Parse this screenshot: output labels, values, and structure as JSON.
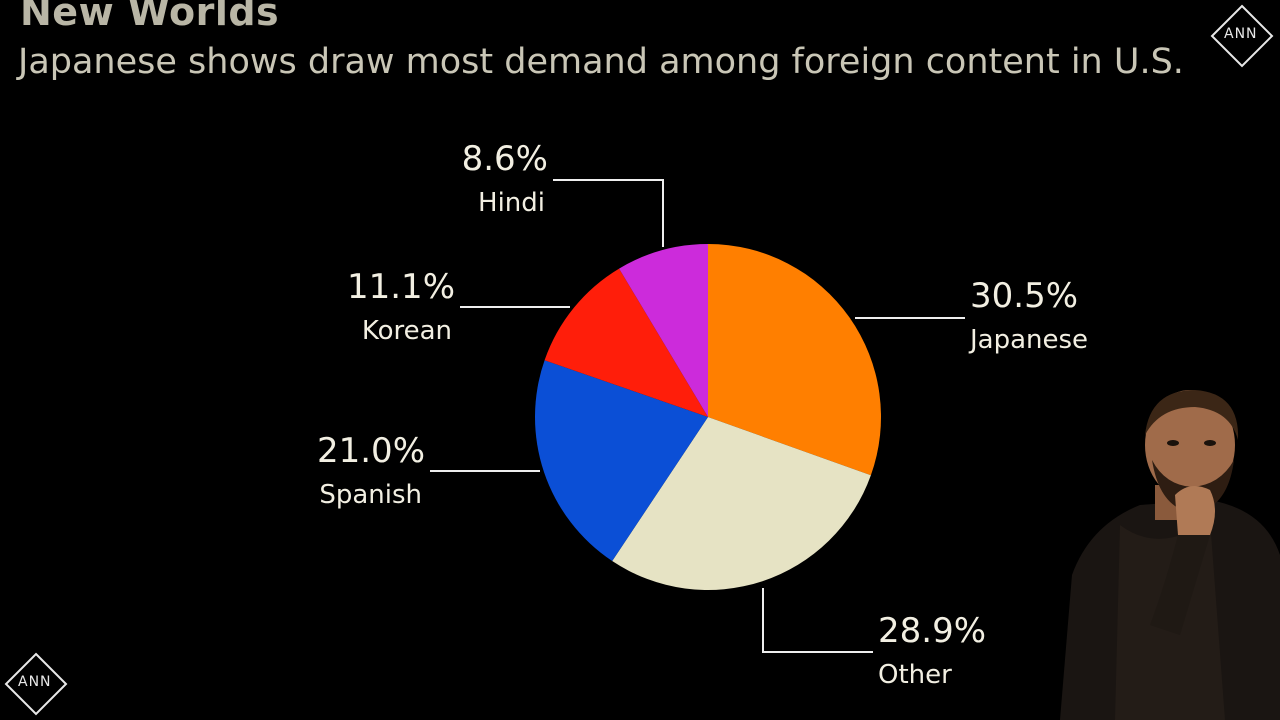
{
  "header": {
    "title": "New Worlds",
    "subtitle": "Japanese shows draw most demand among foreign content in U.S."
  },
  "watermark": {
    "text_top_right": "ANN",
    "text_bottom_left": "ANN"
  },
  "colors": {
    "background": "#000000",
    "japanese": "#ff7f00",
    "other": "#e6e3c4",
    "spanish": "#0b4fd6",
    "korean": "#ff1e0a",
    "hindi": "#cc2bdb"
  },
  "chart_data": {
    "type": "pie",
    "title": "New Worlds",
    "subtitle": "Japanese shows draw most demand among foreign content in U.S.",
    "slices": [
      {
        "label": "Japanese",
        "value": 30.5,
        "display": "30.5%",
        "color": "#ff7f00"
      },
      {
        "label": "Other",
        "value": 28.9,
        "display": "28.9%",
        "color": "#e6e3c4"
      },
      {
        "label": "Spanish",
        "value": 21.0,
        "display": "21.0%",
        "color": "#0b4fd6"
      },
      {
        "label": "Korean",
        "value": 11.1,
        "display": "11.1%",
        "color": "#ff1e0a"
      },
      {
        "label": "Hindi",
        "value": 8.6,
        "display": "8.6%",
        "color": "#cc2bdb"
      }
    ],
    "start": "12 o'clock",
    "direction": "clockwise",
    "legend": "none"
  },
  "presenter": {
    "icon": "presenter-webcam-icon"
  }
}
